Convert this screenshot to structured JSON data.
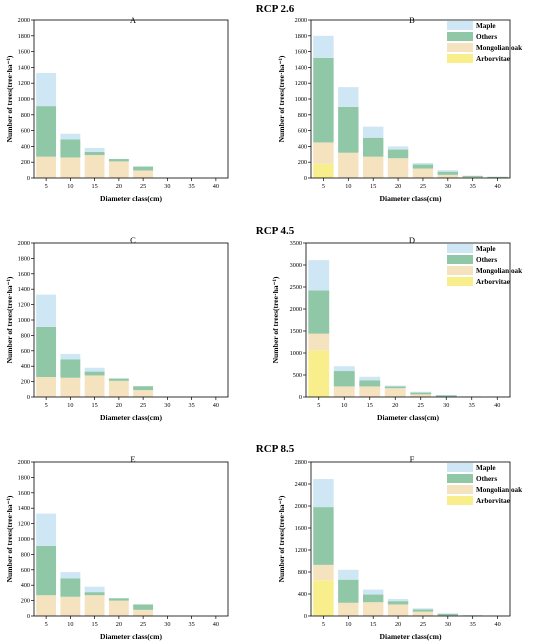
{
  "colors": {
    "Maple": "#cfe6f5",
    "Others": "#8fc7a7",
    "Mongolian oak": "#f5e3c0",
    "Arborvitae": "#f8ee8c",
    "axis": "#000000"
  },
  "legend_order": [
    "Maple",
    "Others",
    "Mongolian oak",
    "Arborvitae"
  ],
  "rows": [
    {
      "title": "RCP 2.6",
      "panels": [
        0,
        1
      ]
    },
    {
      "title": "RCP 4.5",
      "panels": [
        2,
        3
      ]
    },
    {
      "title": "RCP 8.5",
      "panels": [
        4,
        5
      ]
    }
  ],
  "chart_data": [
    {
      "type": "bar",
      "stacked": true,
      "panel": "A",
      "scenario": "RCP 2.6",
      "categories": [
        "5",
        "10",
        "15",
        "20",
        "25",
        "30",
        "35",
        "40"
      ],
      "xlabel": "Diameter class(cm)",
      "ylabel": "Number of trees(tree·ha⁻¹)",
      "ylim": [
        0,
        2000
      ],
      "yticks": [
        0,
        200,
        400,
        600,
        800,
        1000,
        1200,
        1400,
        1600,
        1800,
        2000
      ],
      "legend": false,
      "series": [
        {
          "name": "Arborvitae",
          "values": [
            0,
            0,
            0,
            0,
            0,
            0,
            0,
            0
          ]
        },
        {
          "name": "Mongolian oak",
          "values": [
            270,
            260,
            290,
            210,
            95,
            0,
            0,
            0
          ]
        },
        {
          "name": "Others",
          "values": [
            640,
            230,
            40,
            30,
            50,
            0,
            0,
            0
          ]
        },
        {
          "name": "Maple",
          "values": [
            420,
            70,
            50,
            0,
            0,
            0,
            0,
            0
          ]
        }
      ]
    },
    {
      "type": "bar",
      "stacked": true,
      "panel": "B",
      "scenario": "RCP 2.6",
      "categories": [
        "5",
        "10",
        "15",
        "20",
        "25",
        "30",
        "35",
        "40"
      ],
      "xlabel": "Diameter class(cm)",
      "ylabel": "Number of trees(tree·ha⁻¹)",
      "ylim": [
        0,
        2000
      ],
      "yticks": [
        0,
        200,
        400,
        600,
        800,
        1000,
        1200,
        1400,
        1600,
        1800,
        2000
      ],
      "legend": true,
      "legend_position": "top-right",
      "series": [
        {
          "name": "Arborvitae",
          "values": [
            180,
            0,
            0,
            0,
            0,
            0,
            0,
            0
          ]
        },
        {
          "name": "Mongolian oak",
          "values": [
            270,
            320,
            270,
            250,
            120,
            40,
            10,
            5
          ]
        },
        {
          "name": "Others",
          "values": [
            1070,
            580,
            240,
            110,
            50,
            40,
            15,
            10
          ]
        },
        {
          "name": "Maple",
          "values": [
            280,
            250,
            140,
            40,
            20,
            20,
            5,
            0
          ]
        }
      ]
    },
    {
      "type": "bar",
      "stacked": true,
      "panel": "C",
      "scenario": "RCP 4.5",
      "categories": [
        "5",
        "10",
        "15",
        "20",
        "25",
        "30",
        "35",
        "40"
      ],
      "xlabel": "Diameter class(cm)",
      "ylabel": "Number of trees(tree·ha⁻¹)",
      "ylim": [
        0,
        2000
      ],
      "yticks": [
        0,
        200,
        400,
        600,
        800,
        1000,
        1200,
        1400,
        1600,
        1800,
        2000
      ],
      "legend": false,
      "series": [
        {
          "name": "Arborvitae",
          "values": [
            0,
            0,
            0,
            0,
            0,
            0,
            0,
            0
          ]
        },
        {
          "name": "Mongolian oak",
          "values": [
            260,
            250,
            280,
            210,
            90,
            0,
            0,
            0
          ]
        },
        {
          "name": "Others",
          "values": [
            650,
            240,
            50,
            30,
            50,
            0,
            0,
            0
          ]
        },
        {
          "name": "Maple",
          "values": [
            420,
            70,
            50,
            0,
            0,
            0,
            0,
            0
          ]
        }
      ]
    },
    {
      "type": "bar",
      "stacked": true,
      "panel": "D",
      "scenario": "RCP 4.5",
      "categories": [
        "5",
        "10",
        "15",
        "20",
        "25",
        "30",
        "35",
        "40"
      ],
      "xlabel": "Diameter class(cm)",
      "ylabel": "Number of trees(tree·ha⁻¹)",
      "ylim": [
        0,
        3500
      ],
      "yticks": [
        0,
        500,
        1000,
        1500,
        2000,
        2500,
        3000,
        3500
      ],
      "legend": true,
      "legend_position": "top-right",
      "series": [
        {
          "name": "Arborvitae",
          "values": [
            1060,
            0,
            0,
            0,
            0,
            0,
            0,
            0
          ]
        },
        {
          "name": "Mongolian oak",
          "values": [
            380,
            240,
            240,
            200,
            60,
            10,
            0,
            0
          ]
        },
        {
          "name": "Others",
          "values": [
            980,
            350,
            140,
            40,
            40,
            30,
            10,
            5
          ]
        },
        {
          "name": "Maple",
          "values": [
            690,
            110,
            80,
            20,
            20,
            5,
            0,
            0
          ]
        }
      ]
    },
    {
      "type": "bar",
      "stacked": true,
      "panel": "E",
      "scenario": "RCP 8.5",
      "categories": [
        "5",
        "10",
        "15",
        "20",
        "25",
        "30",
        "35",
        "40"
      ],
      "xlabel": "Diameter class(cm)",
      "ylabel": "Number of trees(tree·ha⁻¹)",
      "ylim": [
        0,
        2000
      ],
      "yticks": [
        0,
        200,
        400,
        600,
        800,
        1000,
        1200,
        1400,
        1600,
        1800,
        2000
      ],
      "legend": false,
      "series": [
        {
          "name": "Arborvitae",
          "values": [
            0,
            0,
            0,
            0,
            0,
            0,
            0,
            0
          ]
        },
        {
          "name": "Mongolian oak",
          "values": [
            270,
            250,
            270,
            200,
            80,
            0,
            0,
            0
          ]
        },
        {
          "name": "Others",
          "values": [
            640,
            240,
            40,
            30,
            70,
            0,
            0,
            0
          ]
        },
        {
          "name": "Maple",
          "values": [
            420,
            80,
            70,
            0,
            0,
            0,
            0,
            0
          ]
        }
      ]
    },
    {
      "type": "bar",
      "stacked": true,
      "panel": "F",
      "scenario": "RCP 8.5",
      "categories": [
        "5",
        "10",
        "15",
        "20",
        "25",
        "30",
        "35",
        "40"
      ],
      "xlabel": "Diameter class(cm)",
      "ylabel": "Number of trees(tree·ha⁻¹)",
      "ylim": [
        0,
        2800
      ],
      "yticks": [
        0,
        400,
        800,
        1200,
        1600,
        2000,
        2400,
        2800
      ],
      "legend": true,
      "legend_position": "top-right",
      "series": [
        {
          "name": "Arborvitae",
          "values": [
            650,
            0,
            0,
            0,
            0,
            0,
            0,
            0
          ]
        },
        {
          "name": "Mongolian oak",
          "values": [
            280,
            240,
            250,
            210,
            80,
            10,
            0,
            0
          ]
        },
        {
          "name": "Others",
          "values": [
            1050,
            420,
            140,
            60,
            40,
            30,
            10,
            5
          ]
        },
        {
          "name": "Maple",
          "values": [
            510,
            180,
            90,
            40,
            20,
            10,
            5,
            0
          ]
        }
      ]
    }
  ]
}
